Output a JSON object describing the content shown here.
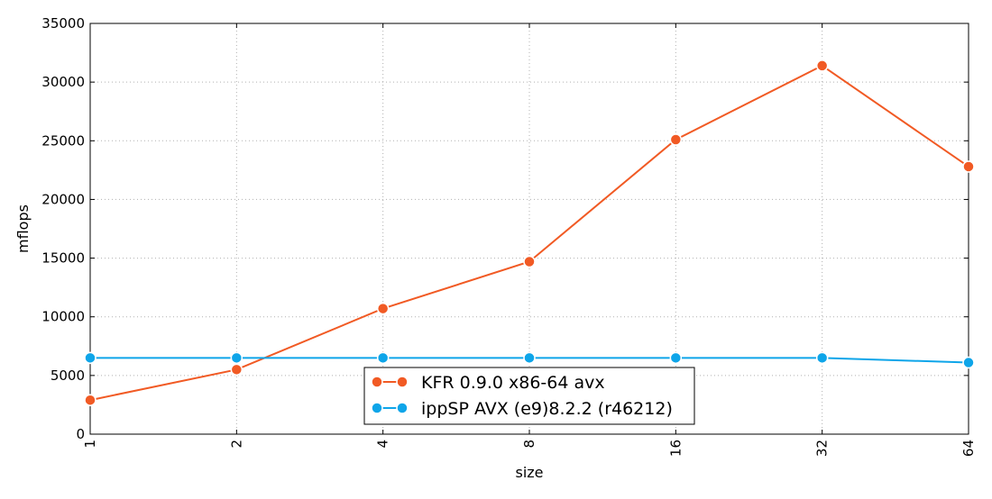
{
  "chart_data": {
    "type": "line",
    "xlabel": "size",
    "ylabel": "mflops",
    "x_scale": "log2",
    "categories": [
      "1",
      "2",
      "4",
      "8",
      "16",
      "32",
      "64"
    ],
    "x": [
      1,
      2,
      4,
      8,
      16,
      32,
      64
    ],
    "ylim": [
      0,
      35000
    ],
    "y_ticks": [
      "0",
      "5000",
      "10000",
      "15000",
      "20000",
      "25000",
      "30000",
      "35000"
    ],
    "grid": true,
    "legend_position": "lower-center",
    "series": [
      {
        "name": "KFR 0.9.0 x86-64 avx",
        "color": "#f15a24",
        "marker": "circle",
        "values": [
          2900,
          5500,
          10700,
          14700,
          25100,
          31400,
          22800
        ]
      },
      {
        "name": "ippSP AVX (e9)8.2.2 (r46212)",
        "color": "#0ea5e9",
        "marker": "circle",
        "values": [
          6500,
          6500,
          6500,
          6500,
          6500,
          6500,
          6100
        ]
      }
    ]
  }
}
